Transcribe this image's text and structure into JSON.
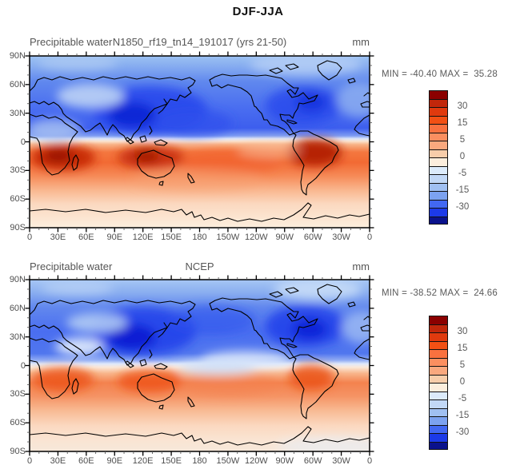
{
  "figure_title": "DJF-JJA",
  "panels": [
    {
      "field_label": "Precipitable water",
      "case_label": "N1850_rf19_tn14_191017 (yrs 21-50)",
      "units": "mm",
      "stats": "MIN = -40.40 MAX =  35.28"
    },
    {
      "field_label": "Precipitable water",
      "case_label": "NCEP",
      "units": "mm",
      "stats": "MIN = -38.52 MAX =  24.66"
    }
  ],
  "axes": {
    "x_labels": [
      "0",
      "30E",
      "60E",
      "90E",
      "120E",
      "150E",
      "180",
      "150W",
      "120W",
      "90W",
      "60W",
      "30W",
      "0"
    ],
    "y_labels": [
      "90N",
      "60N",
      "30N",
      "0",
      "30S",
      "60S",
      "90S"
    ]
  },
  "colorbar": {
    "n_bands": 16,
    "labels": [
      "30",
      "15",
      "5",
      "0",
      "-5",
      "-15",
      "-30"
    ],
    "colors": [
      "#8b0000",
      "#c1270b",
      "#e03a0e",
      "#f25014",
      "#f9713f",
      "#fb8f60",
      "#f9a87e",
      "#f7cdaa",
      "#fceedd",
      "#dcebfb",
      "#c2d8f6",
      "#a0c0f2",
      "#7ca2f0",
      "#4268f2",
      "#1c3ae8",
      "#0a128c"
    ]
  },
  "chart_data": [
    {
      "type": "heatmap",
      "subtype": "filled-contour world map, Pacific-centered (0E to 360E)",
      "title": "N1850_rf19_tn14_191017 (yrs 21-50)",
      "variable": "Precipitable water",
      "season_difference": "DJF-JJA",
      "units": "mm",
      "min": -40.4,
      "max": 35.28,
      "x_ticks": [
        "0",
        "30E",
        "60E",
        "90E",
        "120E",
        "150E",
        "180",
        "150W",
        "120W",
        "90W",
        "60W",
        "30W",
        "0"
      ],
      "y_ticks": [
        "90N",
        "60N",
        "30N",
        "0",
        "30S",
        "60S",
        "90S"
      ],
      "colorbar_tick_values": [
        30,
        15,
        5,
        0,
        -5,
        -15,
        -30
      ],
      "n_color_bands": 16,
      "pattern": "Northern Hemisphere negative (blue; darkest over East Asia, NW Pacific and eastern North America; lighter over central Asia and Arctic); sharp sign change just north of the equator; Southern Hemisphere positive (orange-red band 5S-35S with dark red cores over southern Africa, northern Australia and South America); pale cream values over Antarctica"
    },
    {
      "type": "heatmap",
      "subtype": "filled-contour world map, Pacific-centered (0E to 360E)",
      "title": "NCEP",
      "variable": "Precipitable water",
      "season_difference": "DJF-JJA",
      "units": "mm",
      "min": -38.52,
      "max": 24.66,
      "x_ticks": [
        "0",
        "30E",
        "60E",
        "90E",
        "120E",
        "150E",
        "180",
        "150W",
        "120W",
        "90W",
        "60W",
        "30W",
        "0"
      ],
      "y_ticks": [
        "90N",
        "60N",
        "30N",
        "0",
        "30S",
        "60S",
        "90S"
      ],
      "colorbar_tick_values": [
        30,
        15,
        5,
        0,
        -5,
        -15,
        -30
      ],
      "n_color_bands": 16,
      "pattern": "Similar to model: Northern Hemisphere blue with dark cores over East Asia and eastern North America, pale streaks over west-central Asia and the eastern equatorial Pacific; Southern Hemisphere orange (weaker maxima) over southern Africa, Australia and South America; pale blue patch in the central South Pacific; pale peach over Antarctica"
    }
  ]
}
